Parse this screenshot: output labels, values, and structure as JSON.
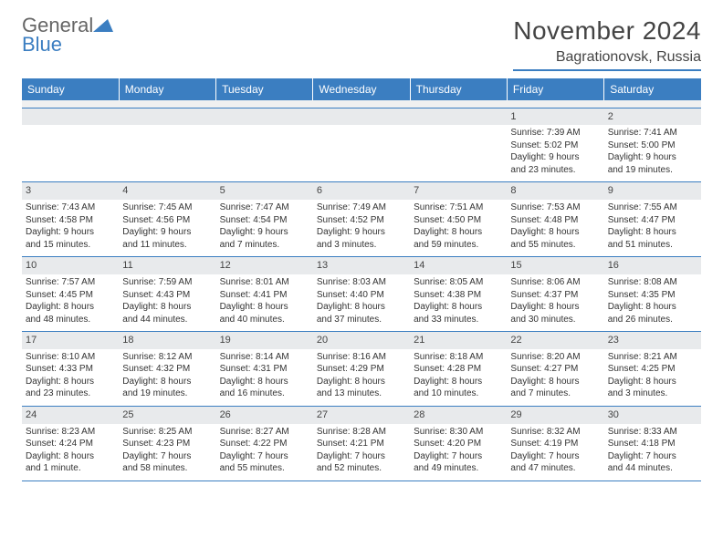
{
  "logo": {
    "word1": "General",
    "word2": "Blue"
  },
  "title": "November 2024",
  "location": "Bagrationovsk, Russia",
  "colors": {
    "accent": "#3b7ec1",
    "daynum_bg": "#e8eaec",
    "text": "#333333"
  },
  "day_headers": [
    "Sunday",
    "Monday",
    "Tuesday",
    "Wednesday",
    "Thursday",
    "Friday",
    "Saturday"
  ],
  "weeks": [
    [
      {
        "empty": true
      },
      {
        "empty": true
      },
      {
        "empty": true
      },
      {
        "empty": true
      },
      {
        "empty": true
      },
      {
        "n": "1",
        "sunrise": "Sunrise: 7:39 AM",
        "sunset": "Sunset: 5:02 PM",
        "d1": "Daylight: 9 hours",
        "d2": "and 23 minutes."
      },
      {
        "n": "2",
        "sunrise": "Sunrise: 7:41 AM",
        "sunset": "Sunset: 5:00 PM",
        "d1": "Daylight: 9 hours",
        "d2": "and 19 minutes."
      }
    ],
    [
      {
        "n": "3",
        "sunrise": "Sunrise: 7:43 AM",
        "sunset": "Sunset: 4:58 PM",
        "d1": "Daylight: 9 hours",
        "d2": "and 15 minutes."
      },
      {
        "n": "4",
        "sunrise": "Sunrise: 7:45 AM",
        "sunset": "Sunset: 4:56 PM",
        "d1": "Daylight: 9 hours",
        "d2": "and 11 minutes."
      },
      {
        "n": "5",
        "sunrise": "Sunrise: 7:47 AM",
        "sunset": "Sunset: 4:54 PM",
        "d1": "Daylight: 9 hours",
        "d2": "and 7 minutes."
      },
      {
        "n": "6",
        "sunrise": "Sunrise: 7:49 AM",
        "sunset": "Sunset: 4:52 PM",
        "d1": "Daylight: 9 hours",
        "d2": "and 3 minutes."
      },
      {
        "n": "7",
        "sunrise": "Sunrise: 7:51 AM",
        "sunset": "Sunset: 4:50 PM",
        "d1": "Daylight: 8 hours",
        "d2": "and 59 minutes."
      },
      {
        "n": "8",
        "sunrise": "Sunrise: 7:53 AM",
        "sunset": "Sunset: 4:48 PM",
        "d1": "Daylight: 8 hours",
        "d2": "and 55 minutes."
      },
      {
        "n": "9",
        "sunrise": "Sunrise: 7:55 AM",
        "sunset": "Sunset: 4:47 PM",
        "d1": "Daylight: 8 hours",
        "d2": "and 51 minutes."
      }
    ],
    [
      {
        "n": "10",
        "sunrise": "Sunrise: 7:57 AM",
        "sunset": "Sunset: 4:45 PM",
        "d1": "Daylight: 8 hours",
        "d2": "and 48 minutes."
      },
      {
        "n": "11",
        "sunrise": "Sunrise: 7:59 AM",
        "sunset": "Sunset: 4:43 PM",
        "d1": "Daylight: 8 hours",
        "d2": "and 44 minutes."
      },
      {
        "n": "12",
        "sunrise": "Sunrise: 8:01 AM",
        "sunset": "Sunset: 4:41 PM",
        "d1": "Daylight: 8 hours",
        "d2": "and 40 minutes."
      },
      {
        "n": "13",
        "sunrise": "Sunrise: 8:03 AM",
        "sunset": "Sunset: 4:40 PM",
        "d1": "Daylight: 8 hours",
        "d2": "and 37 minutes."
      },
      {
        "n": "14",
        "sunrise": "Sunrise: 8:05 AM",
        "sunset": "Sunset: 4:38 PM",
        "d1": "Daylight: 8 hours",
        "d2": "and 33 minutes."
      },
      {
        "n": "15",
        "sunrise": "Sunrise: 8:06 AM",
        "sunset": "Sunset: 4:37 PM",
        "d1": "Daylight: 8 hours",
        "d2": "and 30 minutes."
      },
      {
        "n": "16",
        "sunrise": "Sunrise: 8:08 AM",
        "sunset": "Sunset: 4:35 PM",
        "d1": "Daylight: 8 hours",
        "d2": "and 26 minutes."
      }
    ],
    [
      {
        "n": "17",
        "sunrise": "Sunrise: 8:10 AM",
        "sunset": "Sunset: 4:33 PM",
        "d1": "Daylight: 8 hours",
        "d2": "and 23 minutes."
      },
      {
        "n": "18",
        "sunrise": "Sunrise: 8:12 AM",
        "sunset": "Sunset: 4:32 PM",
        "d1": "Daylight: 8 hours",
        "d2": "and 19 minutes."
      },
      {
        "n": "19",
        "sunrise": "Sunrise: 8:14 AM",
        "sunset": "Sunset: 4:31 PM",
        "d1": "Daylight: 8 hours",
        "d2": "and 16 minutes."
      },
      {
        "n": "20",
        "sunrise": "Sunrise: 8:16 AM",
        "sunset": "Sunset: 4:29 PM",
        "d1": "Daylight: 8 hours",
        "d2": "and 13 minutes."
      },
      {
        "n": "21",
        "sunrise": "Sunrise: 8:18 AM",
        "sunset": "Sunset: 4:28 PM",
        "d1": "Daylight: 8 hours",
        "d2": "and 10 minutes."
      },
      {
        "n": "22",
        "sunrise": "Sunrise: 8:20 AM",
        "sunset": "Sunset: 4:27 PM",
        "d1": "Daylight: 8 hours",
        "d2": "and 7 minutes."
      },
      {
        "n": "23",
        "sunrise": "Sunrise: 8:21 AM",
        "sunset": "Sunset: 4:25 PM",
        "d1": "Daylight: 8 hours",
        "d2": "and 3 minutes."
      }
    ],
    [
      {
        "n": "24",
        "sunrise": "Sunrise: 8:23 AM",
        "sunset": "Sunset: 4:24 PM",
        "d1": "Daylight: 8 hours",
        "d2": "and 1 minute."
      },
      {
        "n": "25",
        "sunrise": "Sunrise: 8:25 AM",
        "sunset": "Sunset: 4:23 PM",
        "d1": "Daylight: 7 hours",
        "d2": "and 58 minutes."
      },
      {
        "n": "26",
        "sunrise": "Sunrise: 8:27 AM",
        "sunset": "Sunset: 4:22 PM",
        "d1": "Daylight: 7 hours",
        "d2": "and 55 minutes."
      },
      {
        "n": "27",
        "sunrise": "Sunrise: 8:28 AM",
        "sunset": "Sunset: 4:21 PM",
        "d1": "Daylight: 7 hours",
        "d2": "and 52 minutes."
      },
      {
        "n": "28",
        "sunrise": "Sunrise: 8:30 AM",
        "sunset": "Sunset: 4:20 PM",
        "d1": "Daylight: 7 hours",
        "d2": "and 49 minutes."
      },
      {
        "n": "29",
        "sunrise": "Sunrise: 8:32 AM",
        "sunset": "Sunset: 4:19 PM",
        "d1": "Daylight: 7 hours",
        "d2": "and 47 minutes."
      },
      {
        "n": "30",
        "sunrise": "Sunrise: 8:33 AM",
        "sunset": "Sunset: 4:18 PM",
        "d1": "Daylight: 7 hours",
        "d2": "and 44 minutes."
      }
    ]
  ]
}
